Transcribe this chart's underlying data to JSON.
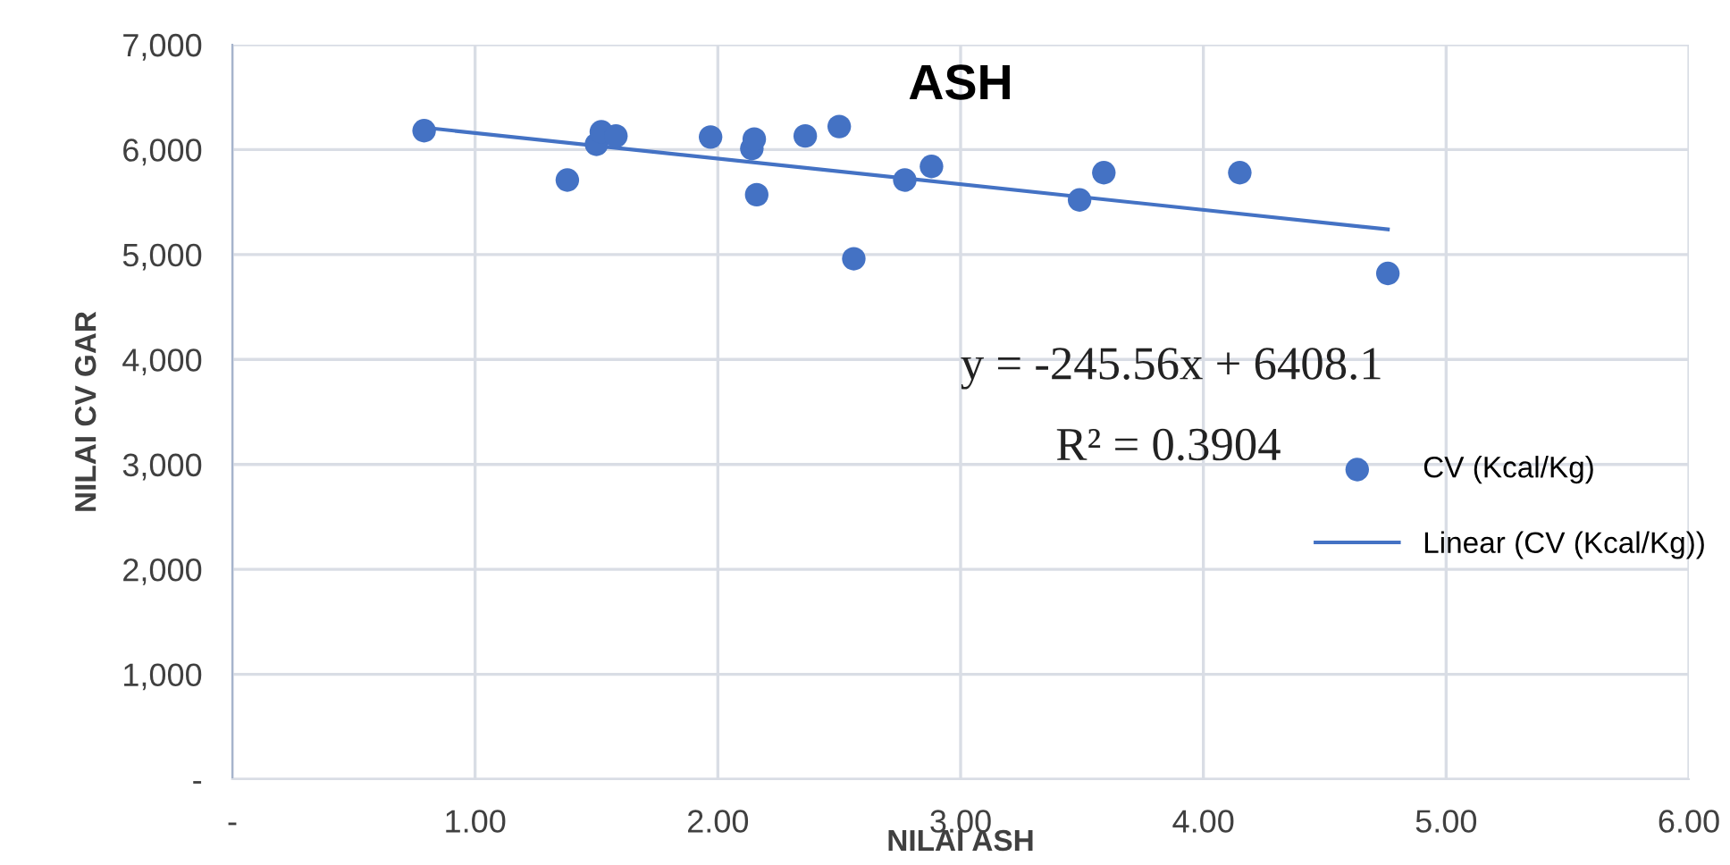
{
  "chart_data": {
    "type": "scatter",
    "title": "ASH",
    "xlabel": "NILAI ASH",
    "ylabel": "NILAI CV GAR",
    "xlim": [
      0,
      6
    ],
    "xticks": [
      {
        "value": 0,
        "label": "-"
      },
      {
        "value": 1,
        "label": "1.00"
      },
      {
        "value": 2,
        "label": "2.00"
      },
      {
        "value": 3,
        "label": "3.00"
      },
      {
        "value": 4,
        "label": "4.00"
      },
      {
        "value": 5,
        "label": "5.00"
      },
      {
        "value": 6,
        "label": "6.00"
      }
    ],
    "ylim": [
      0,
      7000
    ],
    "yticks": [
      {
        "value": 0,
        "label": "-"
      },
      {
        "value": 1000,
        "label": "1,000"
      },
      {
        "value": 2000,
        "label": "2,000"
      },
      {
        "value": 3000,
        "label": "3,000"
      },
      {
        "value": 4000,
        "label": "4,000"
      },
      {
        "value": 5000,
        "label": "5,000"
      },
      {
        "value": 6000,
        "label": "6,000"
      },
      {
        "value": 7000,
        "label": "7,000"
      }
    ],
    "grid": true,
    "legend": "right",
    "marker": "circle",
    "series": [
      {
        "name": "CV (Kcal/Kg)",
        "color": "#4472c4",
        "x": [
          0.79,
          1.38,
          1.5,
          1.52,
          1.58,
          1.97,
          2.14,
          2.15,
          2.16,
          2.36,
          2.5,
          2.56,
          2.77,
          2.88,
          3.49,
          3.59,
          4.15,
          4.76
        ],
        "values": [
          6180,
          5710,
          6050,
          6170,
          6130,
          6120,
          6010,
          6100,
          5570,
          6130,
          6220,
          4960,
          5710,
          5840,
          5520,
          5780,
          5780,
          4820
        ]
      },
      {
        "name": "Linear (CV (Kcal/Kg))",
        "type": "line",
        "color": "#4472c4",
        "line_style": "solid",
        "marker": "none",
        "x": [
          0.79,
          4.76
        ],
        "values": [
          6210,
          5240
        ]
      }
    ],
    "annotations": [
      "y = -245.56x + 6408.1",
      "R² = 0.3904"
    ]
  }
}
